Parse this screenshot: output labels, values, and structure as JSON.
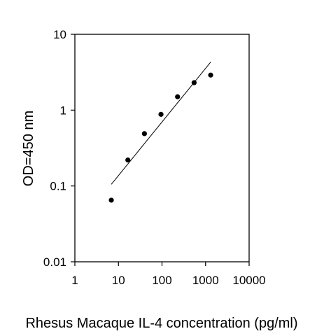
{
  "chart_data": {
    "type": "scatter",
    "title": "",
    "xlabel": "Rhesus Macaque IL-4 concentration (pg/ml)",
    "ylabel": "OD=450 nm",
    "x_scale": "log",
    "y_scale": "log",
    "xlim": [
      1,
      10000
    ],
    "ylim": [
      0.01,
      10
    ],
    "x_ticks": [
      1,
      10,
      100,
      1000,
      10000
    ],
    "x_tick_labels": [
      "1",
      "10",
      "100",
      "1000",
      "10000"
    ],
    "y_ticks": [
      0.01,
      0.1,
      1,
      10
    ],
    "y_tick_labels": [
      "0.01",
      "0.1",
      "1",
      "10"
    ],
    "grid": false,
    "legend": "none",
    "colors": {
      "points": "#000000",
      "fit_line": "#000000",
      "axes": "#000000"
    },
    "series": [
      {
        "x": [
          6.86,
          16.46,
          39.5,
          94.8,
          227.5,
          546,
          1310
        ],
        "y": [
          0.065,
          0.22,
          0.49,
          0.88,
          1.5,
          2.3,
          2.9
        ]
      }
    ],
    "fit_line": {
      "x": [
        6.86,
        1310
      ],
      "y": [
        0.105,
        4.3
      ]
    }
  }
}
